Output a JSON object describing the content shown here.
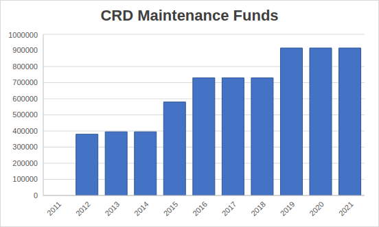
{
  "chart_data": {
    "type": "bar",
    "title": "CRD Maintenance Funds",
    "categories": [
      "2011",
      "2012",
      "2013",
      "2014",
      "2015",
      "2016",
      "2017",
      "2018",
      "2019",
      "2020",
      "2021"
    ],
    "values": [
      0,
      380000,
      395000,
      395000,
      580000,
      730000,
      730000,
      730000,
      915000,
      915000,
      915000
    ],
    "color": "#4472c4",
    "ylim": [
      0,
      1000000
    ],
    "yticks": [
      0,
      100000,
      200000,
      300000,
      400000,
      500000,
      600000,
      700000,
      800000,
      900000,
      1000000
    ],
    "grid": true
  }
}
